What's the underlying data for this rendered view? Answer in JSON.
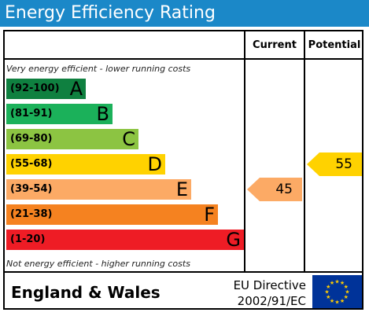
{
  "header": {
    "title": "Energy Efficiency Rating"
  },
  "columns": {
    "current": "Current",
    "potential": "Potential"
  },
  "notes": {
    "top": "Very energy efficient - lower running costs",
    "bottom": "Not energy efficient - higher running costs"
  },
  "chart_data": {
    "type": "bar",
    "title": "Energy Efficiency Rating",
    "bands": [
      {
        "range": "(92-100)",
        "letter": "A",
        "min": 92,
        "max": 100,
        "color": "#0f8040"
      },
      {
        "range": "(81-91)",
        "letter": "B",
        "min": 81,
        "max": 91,
        "color": "#1bb15a"
      },
      {
        "range": "(69-80)",
        "letter": "C",
        "min": 69,
        "max": 80,
        "color": "#8cc442"
      },
      {
        "range": "(55-68)",
        "letter": "D",
        "min": 55,
        "max": 68,
        "color": "#ffd200"
      },
      {
        "range": "(39-54)",
        "letter": "E",
        "min": 39,
        "max": 54,
        "color": "#fcaa65"
      },
      {
        "range": "(21-38)",
        "letter": "F",
        "min": 21,
        "max": 38,
        "color": "#f58220"
      },
      {
        "range": "(1-20)",
        "letter": "G",
        "min": 1,
        "max": 20,
        "color": "#ee1c25"
      }
    ],
    "current": {
      "value": 45,
      "band": "E",
      "color": "#fcaa65"
    },
    "potential": {
      "value": 55,
      "band": "D",
      "color": "#ffd200"
    }
  },
  "footer": {
    "region": "England & Wales",
    "directive_line1": "EU Directive",
    "directive_line2": "2002/91/EC",
    "flag_color": "#003399",
    "star_color": "#ffcc00"
  }
}
